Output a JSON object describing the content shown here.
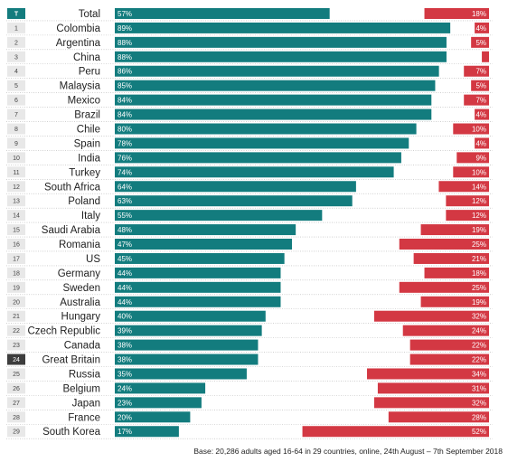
{
  "colors": {
    "teal": "#137c7e",
    "red": "#d33843",
    "rank_box": "#e8e8e8",
    "rank_box_dark": "#3d3d3d"
  },
  "chart_data": {
    "type": "bar",
    "categories": [
      "Total",
      "Colombia",
      "Argentina",
      "China",
      "Peru",
      "Malaysia",
      "Mexico",
      "Brazil",
      "Chile",
      "Spain",
      "India",
      "Turkey",
      "South Africa",
      "Poland",
      "Italy",
      "Saudi Arabia",
      "Romania",
      "US",
      "Germany",
      "Sweden",
      "Australia",
      "Hungary",
      "Czech Republic",
      "Canada",
      "Great Britain",
      "Russia",
      "Belgium",
      "Japan",
      "France",
      "South Korea"
    ],
    "ranks": [
      "T",
      "1",
      "2",
      "3",
      "4",
      "5",
      "6",
      "7",
      "8",
      "9",
      "10",
      "11",
      "12",
      "13",
      "14",
      "15",
      "16",
      "17",
      "18",
      "19",
      "20",
      "21",
      "22",
      "23",
      "24",
      "25",
      "26",
      "27",
      "28",
      "29"
    ],
    "series": [
      {
        "values": [
          57,
          89,
          88,
          88,
          86,
          85,
          84,
          84,
          80,
          78,
          76,
          74,
          64,
          63,
          55,
          48,
          47,
          45,
          44,
          44,
          44,
          40,
          39,
          38,
          38,
          35,
          24,
          23,
          20,
          17
        ],
        "labels": [
          "57%",
          "89%",
          "88%",
          "88%",
          "86%",
          "85%",
          "84%",
          "84%",
          "80%",
          "78%",
          "76%",
          "74%",
          "64%",
          "63%",
          "55%",
          "48%",
          "47%",
          "45%",
          "44%",
          "44%",
          "44%",
          "40%",
          "39%",
          "38%",
          "38%",
          "35%",
          "24%",
          "23%",
          "20%",
          "17%"
        ]
      },
      {
        "values": [
          18,
          4,
          5,
          2,
          7,
          5,
          7,
          4,
          10,
          4,
          9,
          10,
          14,
          12,
          12,
          19,
          25,
          21,
          18,
          25,
          19,
          32,
          24,
          22,
          22,
          34,
          31,
          32,
          28,
          52
        ],
        "labels": [
          "18%",
          "4%",
          "5%",
          "",
          "7%",
          "5%",
          "7%",
          "4%",
          "10%",
          "4%",
          "9%",
          "10%",
          "14%",
          "12%",
          "12%",
          "19%",
          "25%",
          "21%",
          "18%",
          "25%",
          "19%",
          "32%",
          "24%",
          "22%",
          "22%",
          "34%",
          "31%",
          "32%",
          "28%",
          "52%"
        ]
      }
    ],
    "highlight_rank": "24",
    "grid": "dotted row separators"
  },
  "footnote": "Base: 20,286 adults aged 16-64 in 29 countries, online, 24th August – 7th September 2018"
}
